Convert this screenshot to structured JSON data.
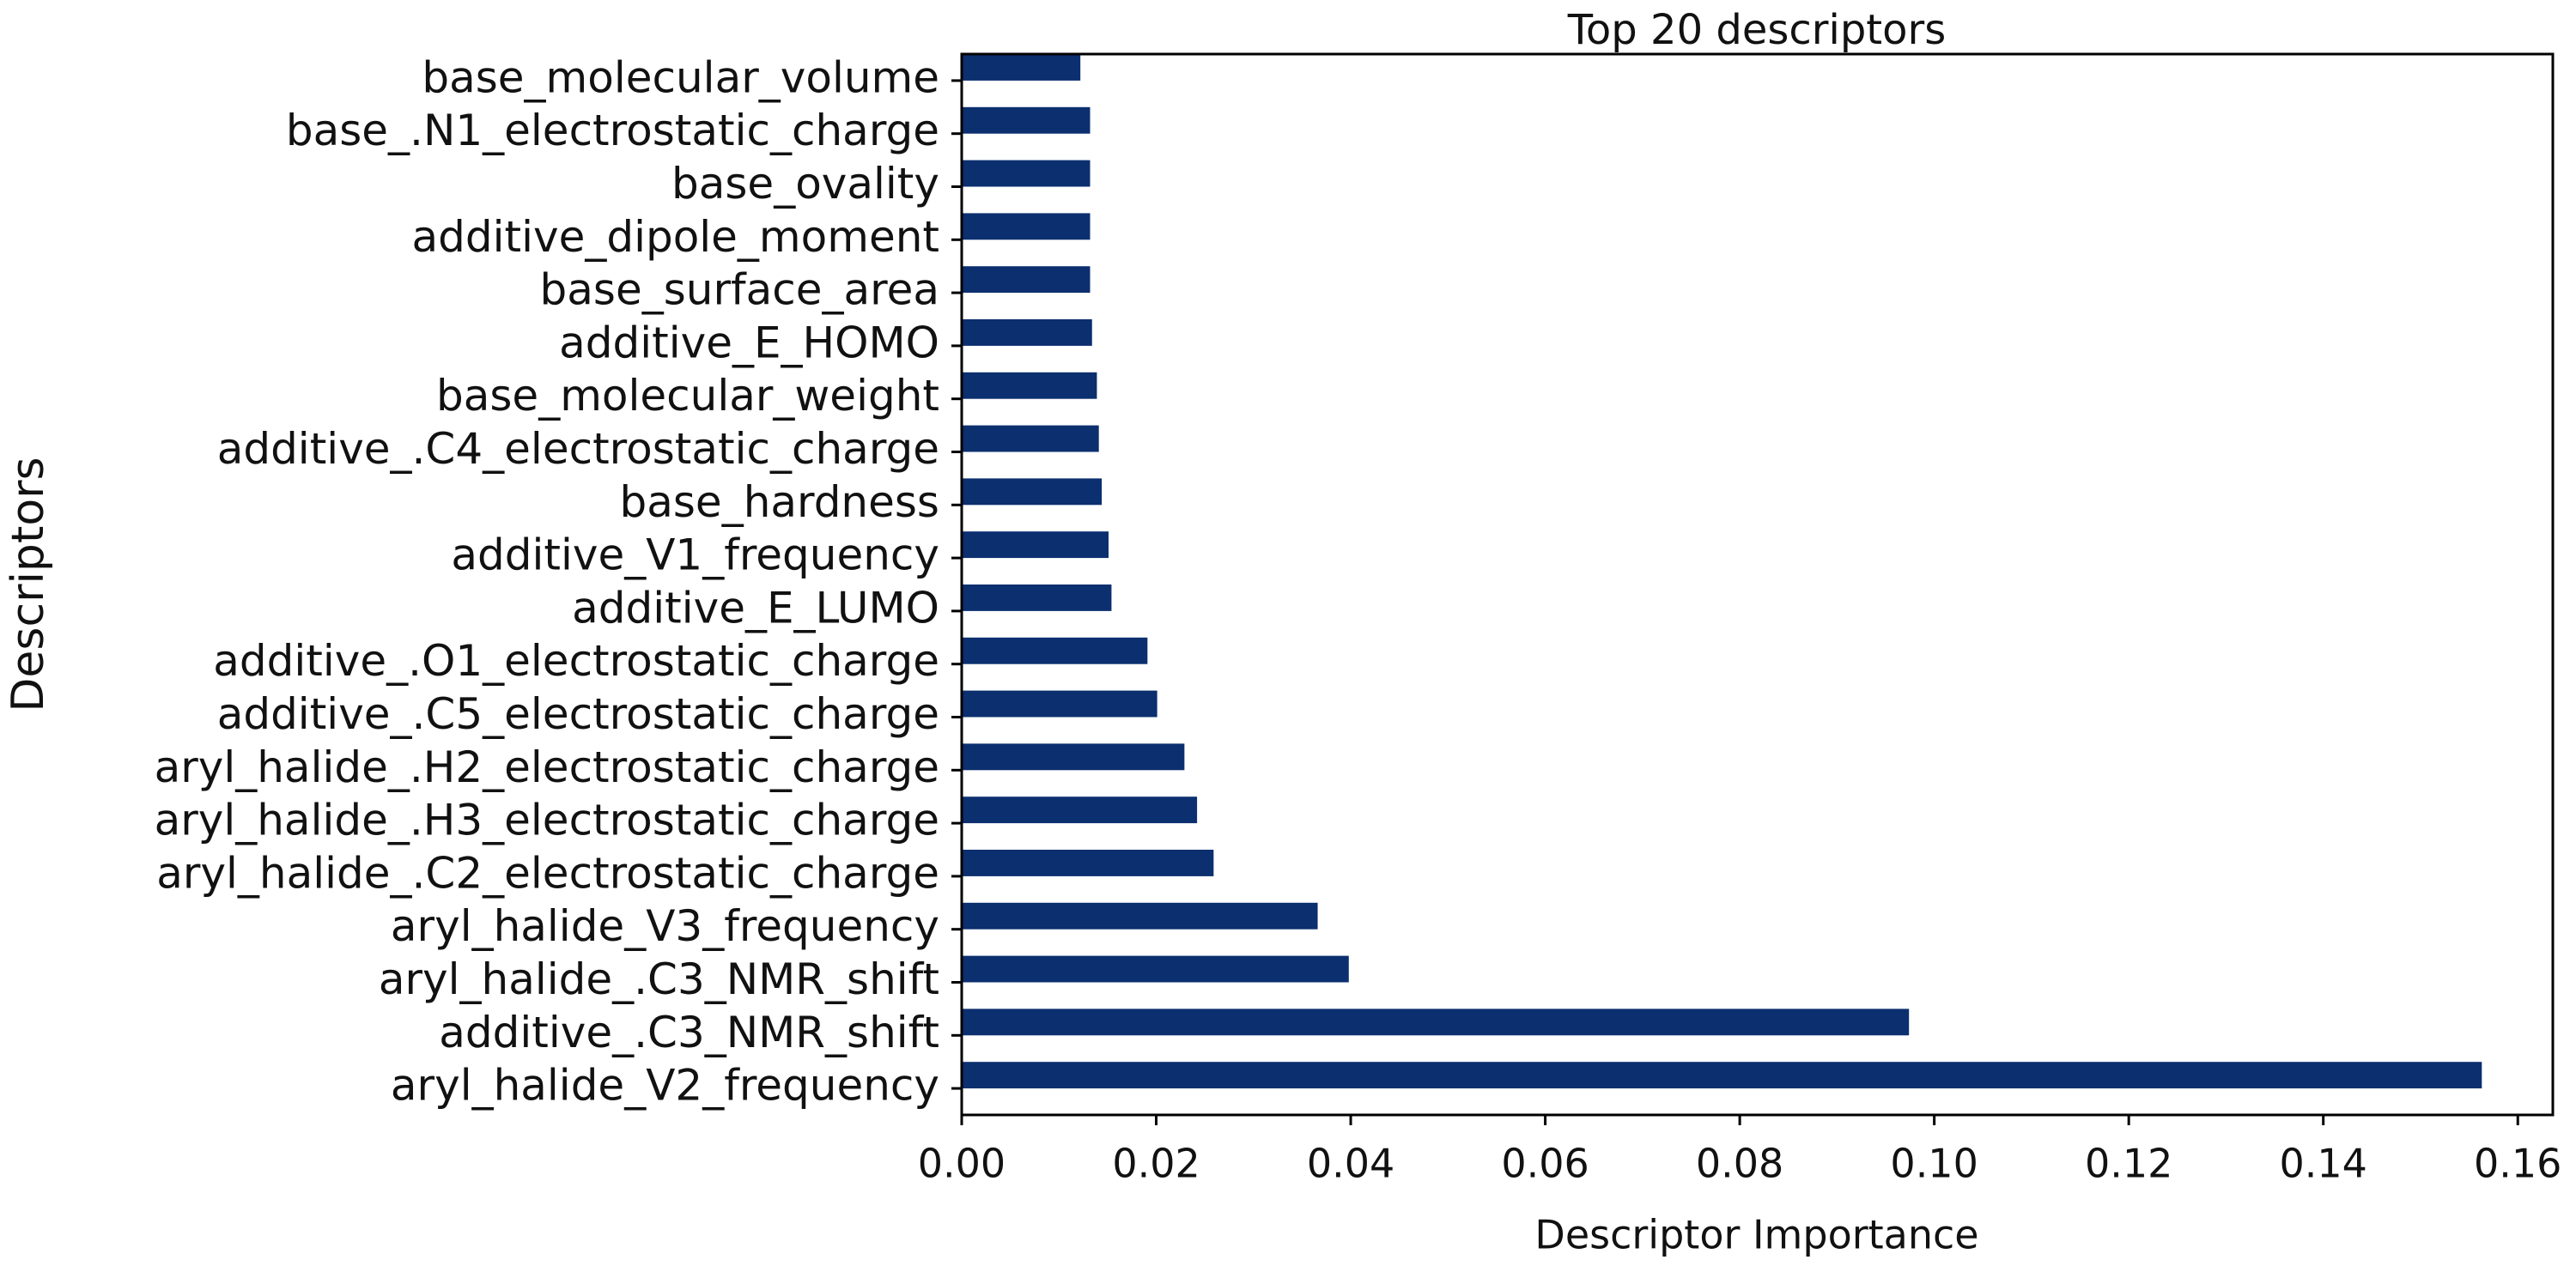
{
  "chart_data": {
    "type": "barh",
    "title": "Top 20 descriptors",
    "x_label": "Descriptor Importance",
    "y_label": "Descriptors",
    "categories": [
      "aryl_halide_V2_frequency",
      "additive_.C3_NMR_shift",
      "aryl_halide_.C3_NMR_shift",
      "aryl_halide_V3_frequency",
      "aryl_halide_.C2_electrostatic_charge",
      "aryl_halide_.H3_electrostatic_charge",
      "aryl_halide_.H2_electrostatic_charge",
      "additive_.C5_electrostatic_charge",
      "additive_.O1_electrostatic_charge",
      "additive_E_LUMO",
      "additive_V1_frequency",
      "base_hardness",
      "additive_.C4_electrostatic_charge",
      "base_molecular_weight",
      "additive_E_HOMO",
      "base_surface_area",
      "additive_dipole_moment",
      "base_ovality",
      "base_.N1_electrostatic_charge",
      "base_molecular_volume"
    ],
    "values": [
      0.1563,
      0.0974,
      0.0398,
      0.0366,
      0.0259,
      0.0242,
      0.0229,
      0.0201,
      0.0191,
      0.0154,
      0.0151,
      0.0144,
      0.0141,
      0.0139,
      0.0134,
      0.0132,
      0.0132,
      0.0132,
      0.0132,
      0.0122
    ],
    "color": "#0b2f6f",
    "xlim": [
      0,
      0.1636
    ],
    "xticks": [
      {
        "value": 0,
        "label": "0.00"
      },
      {
        "value": 0.02,
        "label": "0.02"
      },
      {
        "value": 0.04,
        "label": "0.04"
      },
      {
        "value": 0.06,
        "label": "0.06"
      },
      {
        "value": 0.08,
        "label": "0.08"
      },
      {
        "value": 0.1,
        "label": "0.10"
      },
      {
        "value": 0.12,
        "label": "0.12"
      },
      {
        "value": 0.14,
        "label": "0.14"
      },
      {
        "value": 0.16,
        "label": "0.16"
      }
    ]
  }
}
